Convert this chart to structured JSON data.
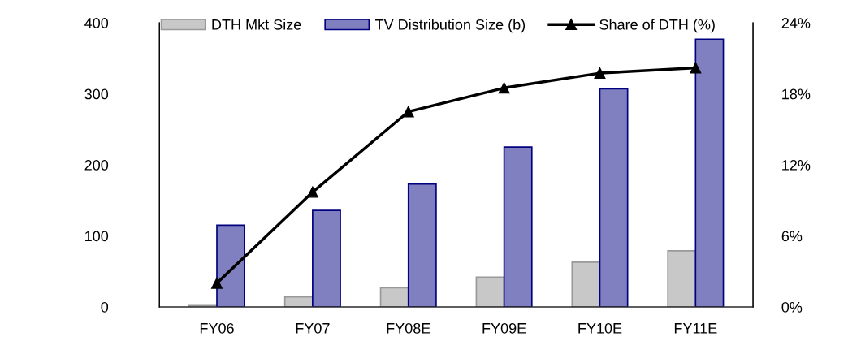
{
  "chart_data": {
    "type": "bar",
    "categories": [
      "FY06",
      "FY07",
      "FY08E",
      "FY09E",
      "FY10E",
      "FY11E"
    ],
    "series": [
      {
        "name": "DTH Mkt Size",
        "color": "#c8c8c8",
        "values": [
          2,
          14,
          27,
          42,
          63,
          79
        ]
      },
      {
        "name": "TV Distribution Size (b)",
        "color": "#8080c0",
        "values": [
          115,
          136,
          173,
          225,
          307,
          377
        ]
      },
      {
        "name": "Share of DTH (%)",
        "type": "line",
        "axis": "y2",
        "color": "#000000",
        "marker": "triangle",
        "values": [
          2.0,
          9.7,
          16.5,
          18.5,
          19.75,
          20.2
        ]
      }
    ],
    "ylim": [
      0,
      400
    ],
    "yticks": [
      0,
      100,
      200,
      300,
      400
    ],
    "y2lim": [
      0,
      24
    ],
    "y2ticks": [
      {
        "value": 0,
        "label": "0%"
      },
      {
        "value": 6,
        "label": "6%"
      },
      {
        "value": 12,
        "label": "12%"
      },
      {
        "value": 18,
        "label": "18%"
      },
      {
        "value": 24,
        "label": "24%"
      }
    ],
    "grid": false,
    "legend": "top"
  }
}
